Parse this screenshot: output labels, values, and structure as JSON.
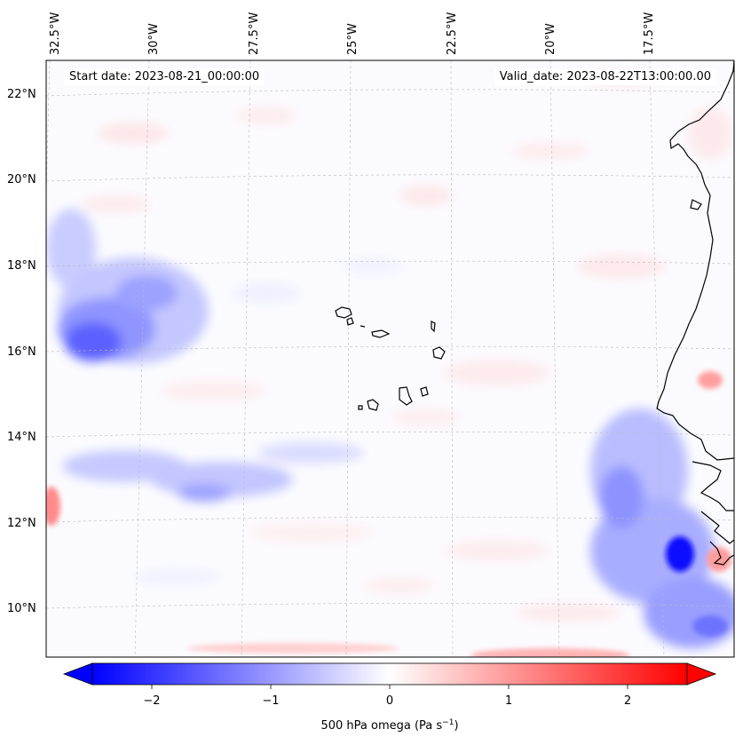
{
  "map": {
    "start_date_text": "Start date: 2023-08-21_00:00:00",
    "valid_date_text": "Valid_date: 2023-08-22T13:00:00.00",
    "longitude_labels": [
      "32.5°W",
      "30°W",
      "27.5°W",
      "25°W",
      "22.5°W",
      "20°W",
      "17.5°W"
    ],
    "latitude_labels": [
      "22°N",
      "20°N",
      "18°N",
      "16°N",
      "14°N",
      "12°N",
      "10°N"
    ],
    "colorbar": {
      "label": "500 hPa omega (Pa s",
      "label_sup": "−1",
      "label_close": ")",
      "ticks": [
        "−2",
        "−1",
        "0",
        "1",
        "2"
      ],
      "tick_values": [
        -2,
        -1,
        0,
        1,
        2
      ],
      "range": [
        -2.5,
        2.5
      ],
      "colormap": "bwr",
      "extend": "both"
    },
    "colors": {
      "negative": "#0000ff",
      "neutral": "#ffffff",
      "positive": "#ff0000",
      "coastline": "#000000",
      "gridline": "#bbbbbb"
    }
  }
}
